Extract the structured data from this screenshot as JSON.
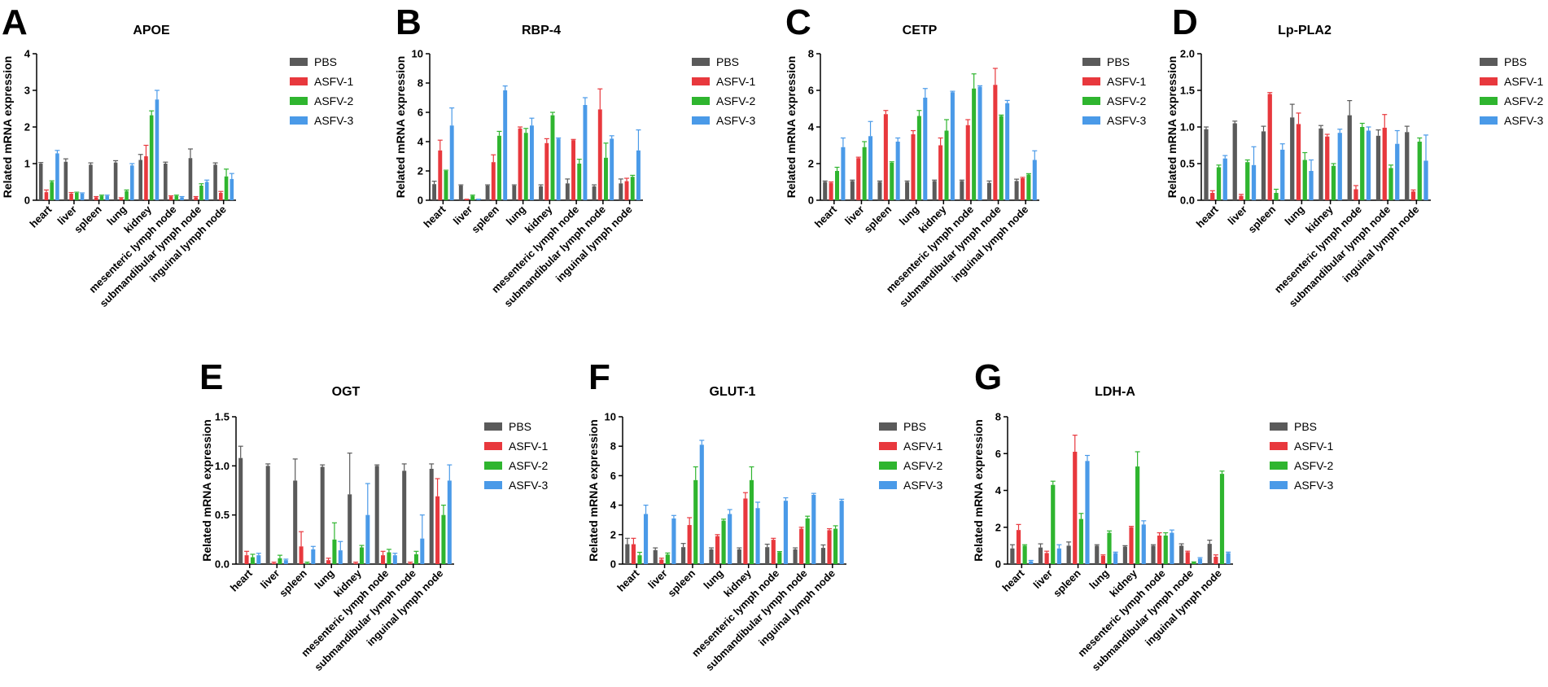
{
  "series_names": [
    "PBS",
    "ASFV-1",
    "ASFV-2",
    "ASFV-3"
  ],
  "colors": {
    "PBS": "#5a5a5a",
    "ASFV-1": "#e8383d",
    "ASFV-2": "#2fb52f",
    "ASFV-3": "#4a9ae8"
  },
  "chart_data": [
    {
      "type": "bar",
      "panel_letter": "A",
      "title": "APOE",
      "ylabel": "Related mRNA expression",
      "ylim": [
        0,
        4
      ],
      "yticks": [
        "0",
        "1",
        "2",
        "3",
        "4"
      ],
      "categories": [
        "heart",
        "liver",
        "spleen",
        "lung",
        "kidney",
        "mesenteric lymph node",
        "submandibular lymph node",
        "inguinal lymph node"
      ],
      "series": [
        {
          "name": "PBS",
          "values": [
            1.0,
            1.05,
            0.97,
            1.03,
            1.1,
            1.0,
            1.15,
            0.97
          ],
          "errors": [
            0.03,
            0.08,
            0.05,
            0.05,
            0.15,
            0.04,
            0.25,
            0.05
          ]
        },
        {
          "name": "ASFV-1",
          "values": [
            0.22,
            0.18,
            0.08,
            0.05,
            1.2,
            0.1,
            0.08,
            0.2
          ],
          "errors": [
            0.06,
            0.03,
            0.02,
            0.02,
            0.3,
            0.02,
            0.02,
            0.04
          ]
        },
        {
          "name": "ASFV-2",
          "values": [
            0.5,
            0.2,
            0.12,
            0.25,
            2.32,
            0.12,
            0.4,
            0.65
          ],
          "errors": [
            0.03,
            0.02,
            0.02,
            0.03,
            0.12,
            0.02,
            0.05,
            0.2
          ]
        },
        {
          "name": "ASFV-3",
          "values": [
            1.28,
            0.18,
            0.12,
            0.95,
            2.75,
            0.08,
            0.5,
            0.58
          ],
          "errors": [
            0.08,
            0.02,
            0.02,
            0.05,
            0.25,
            0.02,
            0.05,
            0.15
          ]
        }
      ]
    },
    {
      "type": "bar",
      "panel_letter": "B",
      "title": "RBP-4",
      "ylabel": "Related mRNA expression",
      "ylim": [
        0,
        10
      ],
      "yticks": [
        "0",
        "2",
        "4",
        "6",
        "8",
        "10"
      ],
      "categories": [
        "heart",
        "liver",
        "spleen",
        "lung",
        "kidney",
        "mesenteric lymph node",
        "submandibular lymph node",
        "inguinal lymph node"
      ],
      "series": [
        {
          "name": "PBS",
          "values": [
            1.1,
            1.0,
            1.0,
            1.0,
            0.95,
            1.15,
            0.95,
            1.15
          ],
          "errors": [
            0.2,
            0.05,
            0.05,
            0.05,
            0.1,
            0.3,
            0.1,
            0.3
          ]
        },
        {
          "name": "ASFV-1",
          "values": [
            3.4,
            0.05,
            2.6,
            4.9,
            3.9,
            4.1,
            6.2,
            1.3
          ],
          "errors": [
            0.7,
            0.02,
            0.5,
            0.1,
            0.3,
            0.05,
            1.4,
            0.2
          ]
        },
        {
          "name": "ASFV-2",
          "values": [
            2.0,
            0.3,
            4.4,
            4.6,
            5.8,
            2.5,
            2.9,
            1.6
          ],
          "errors": [
            0.05,
            0.05,
            0.3,
            0.3,
            0.2,
            0.3,
            1.0,
            0.1
          ]
        },
        {
          "name": "ASFV-3",
          "values": [
            5.1,
            0.05,
            7.5,
            5.1,
            4.2,
            6.5,
            4.2,
            3.4
          ],
          "errors": [
            1.2,
            0.02,
            0.3,
            0.5,
            0.05,
            0.5,
            0.2,
            1.4
          ]
        }
      ]
    },
    {
      "type": "bar",
      "panel_letter": "C",
      "title": "CETP",
      "ylabel": "Related mRNA expression",
      "ylim": [
        0,
        8
      ],
      "yticks": [
        "0",
        "2",
        "4",
        "6",
        "8"
      ],
      "categories": [
        "heart",
        "liver",
        "spleen",
        "lung",
        "kidney",
        "mesenteric lymph node",
        "submandibular lymph node",
        "inguinal lymph node"
      ],
      "series": [
        {
          "name": "PBS",
          "values": [
            1.0,
            1.05,
            1.0,
            1.0,
            1.05,
            1.05,
            0.95,
            1.05
          ],
          "errors": [
            0.05,
            0.05,
            0.05,
            0.05,
            0.05,
            0.05,
            0.1,
            0.1
          ]
        },
        {
          "name": "ASFV-1",
          "values": [
            0.95,
            2.3,
            4.7,
            3.6,
            3.0,
            4.1,
            6.3,
            1.2
          ],
          "errors": [
            0.05,
            0.05,
            0.2,
            0.2,
            0.4,
            0.3,
            0.9,
            0.05
          ]
        },
        {
          "name": "ASFV-2",
          "values": [
            1.6,
            2.9,
            2.05,
            4.6,
            3.8,
            6.1,
            4.6,
            1.4
          ],
          "errors": [
            0.2,
            0.3,
            0.05,
            0.3,
            0.6,
            0.8,
            0.05,
            0.05
          ]
        },
        {
          "name": "ASFV-3",
          "values": [
            2.9,
            3.5,
            3.2,
            5.6,
            5.9,
            6.2,
            5.3,
            2.2
          ],
          "errors": [
            0.5,
            0.8,
            0.2,
            0.5,
            0.05,
            0.05,
            0.15,
            0.5
          ]
        }
      ]
    },
    {
      "type": "bar",
      "panel_letter": "D",
      "title": "Lp-PLA2",
      "ylabel": "Related mRNA expression",
      "ylim": [
        0,
        2.0
      ],
      "yticks": [
        "0.0",
        "0.5",
        "1.0",
        "1.5",
        "2.0"
      ],
      "categories": [
        "heart",
        "liver",
        "spleen",
        "lung",
        "kidney",
        "mesenteric lymph node",
        "submandibular lymph node",
        "inguinal lymph node"
      ],
      "series": [
        {
          "name": "PBS",
          "values": [
            0.97,
            1.05,
            0.94,
            1.13,
            0.98,
            1.16,
            0.88,
            0.93
          ],
          "errors": [
            0.03,
            0.03,
            0.07,
            0.18,
            0.04,
            0.2,
            0.08,
            0.08
          ]
        },
        {
          "name": "ASFV-1",
          "values": [
            0.1,
            0.06,
            1.45,
            1.04,
            0.87,
            0.15,
            0.99,
            0.12
          ],
          "errors": [
            0.03,
            0.02,
            0.02,
            0.15,
            0.03,
            0.05,
            0.18,
            0.02
          ]
        },
        {
          "name": "ASFV-2",
          "values": [
            0.45,
            0.52,
            0.1,
            0.55,
            0.47,
            1.0,
            0.44,
            0.8
          ],
          "errors": [
            0.03,
            0.03,
            0.05,
            0.1,
            0.03,
            0.05,
            0.04,
            0.05
          ]
        },
        {
          "name": "ASFV-3",
          "values": [
            0.57,
            0.48,
            0.69,
            0.4,
            0.92,
            0.95,
            0.77,
            0.54
          ],
          "errors": [
            0.04,
            0.25,
            0.08,
            0.15,
            0.05,
            0.05,
            0.18,
            0.35
          ]
        }
      ]
    },
    {
      "type": "bar",
      "panel_letter": "E",
      "title": "OGT",
      "ylabel": "Related mRNA expression",
      "ylim": [
        0,
        1.5
      ],
      "yticks": [
        "0.0",
        "0.5",
        "1.0",
        "1.5"
      ],
      "categories": [
        "heart",
        "liver",
        "spleen",
        "lung",
        "kidney",
        "mesenteric lymph node",
        "submandibular lymph node",
        "inguinal lymph node"
      ],
      "series": [
        {
          "name": "PBS",
          "values": [
            1.08,
            1.0,
            0.85,
            0.99,
            0.71,
            1.0,
            0.95,
            0.97
          ],
          "errors": [
            0.12,
            0.02,
            0.22,
            0.02,
            0.42,
            0.01,
            0.07,
            0.05
          ]
        },
        {
          "name": "ASFV-1",
          "values": [
            0.09,
            0.01,
            0.18,
            0.04,
            0.01,
            0.09,
            0.01,
            0.69
          ],
          "errors": [
            0.04,
            0.01,
            0.15,
            0.02,
            0.01,
            0.04,
            0.01,
            0.18
          ]
        },
        {
          "name": "ASFV-2",
          "values": [
            0.07,
            0.06,
            0.01,
            0.25,
            0.17,
            0.12,
            0.1,
            0.5
          ],
          "errors": [
            0.03,
            0.03,
            0.01,
            0.17,
            0.02,
            0.03,
            0.03,
            0.1
          ]
        },
        {
          "name": "ASFV-3",
          "values": [
            0.09,
            0.04,
            0.15,
            0.14,
            0.5,
            0.09,
            0.26,
            0.85
          ],
          "errors": [
            0.02,
            0.01,
            0.03,
            0.09,
            0.32,
            0.02,
            0.24,
            0.16
          ]
        }
      ]
    },
    {
      "type": "bar",
      "panel_letter": "F",
      "title": "GLUT-1",
      "ylabel": "Related mRNA expression",
      "ylim": [
        0,
        10
      ],
      "yticks": [
        "0",
        "2",
        "4",
        "6",
        "8",
        "10"
      ],
      "categories": [
        "heart",
        "liver",
        "spleen",
        "lung",
        "kidney",
        "mesenteric lymph node",
        "submandibular lymph node",
        "inguinal lymph node"
      ],
      "series": [
        {
          "name": "PBS",
          "values": [
            1.35,
            0.95,
            1.15,
            1.0,
            1.0,
            1.15,
            1.0,
            1.1
          ],
          "errors": [
            0.4,
            0.15,
            0.25,
            0.1,
            0.1,
            0.2,
            0.1,
            0.2
          ]
        },
        {
          "name": "ASFV-1",
          "values": [
            1.35,
            0.3,
            2.65,
            1.9,
            4.45,
            1.65,
            2.4,
            2.3
          ],
          "errors": [
            0.4,
            0.1,
            0.5,
            0.1,
            0.4,
            0.1,
            0.1,
            0.1
          ]
        },
        {
          "name": "ASFV-2",
          "values": [
            0.6,
            0.65,
            5.7,
            2.95,
            5.7,
            0.8,
            3.1,
            2.4
          ],
          "errors": [
            0.2,
            0.1,
            0.9,
            0.1,
            0.9,
            0.05,
            0.15,
            0.2
          ]
        },
        {
          "name": "ASFV-3",
          "values": [
            3.4,
            3.1,
            8.1,
            3.4,
            3.8,
            4.3,
            4.7,
            4.3
          ],
          "errors": [
            0.6,
            0.2,
            0.3,
            0.3,
            0.4,
            0.2,
            0.1,
            0.1
          ]
        }
      ]
    },
    {
      "type": "bar",
      "panel_letter": "G",
      "title": "LDH-A",
      "ylabel": "Related mRNA expression",
      "ylim": [
        0,
        8
      ],
      "yticks": [
        "0",
        "2",
        "4",
        "6",
        "8"
      ],
      "categories": [
        "heart",
        "liver",
        "spleen",
        "lung",
        "kidney",
        "mesenteric lymph node",
        "submandibular lymph node",
        "inguinal lymph node"
      ],
      "series": [
        {
          "name": "PBS",
          "values": [
            0.85,
            0.9,
            1.0,
            1.0,
            0.95,
            1.0,
            1.0,
            1.1
          ],
          "errors": [
            0.2,
            0.2,
            0.2,
            0.05,
            0.05,
            0.05,
            0.1,
            0.2
          ]
        },
        {
          "name": "ASFV-1",
          "values": [
            1.85,
            0.6,
            6.1,
            0.45,
            2.0,
            1.55,
            0.65,
            0.4
          ],
          "errors": [
            0.3,
            0.1,
            0.9,
            0.05,
            0.05,
            0.15,
            0.05,
            0.1
          ]
        },
        {
          "name": "ASFV-2",
          "values": [
            1.0,
            4.3,
            2.45,
            1.7,
            5.3,
            1.55,
            0.1,
            4.9
          ],
          "errors": [
            0.05,
            0.2,
            0.3,
            0.1,
            0.8,
            0.15,
            0.02,
            0.15
          ]
        },
        {
          "name": "ASFV-3",
          "values": [
            0.15,
            0.85,
            5.6,
            0.6,
            2.15,
            1.7,
            0.3,
            0.6
          ],
          "errors": [
            0.05,
            0.2,
            0.3,
            0.05,
            0.2,
            0.15,
            0.05,
            0.05
          ]
        }
      ]
    }
  ]
}
